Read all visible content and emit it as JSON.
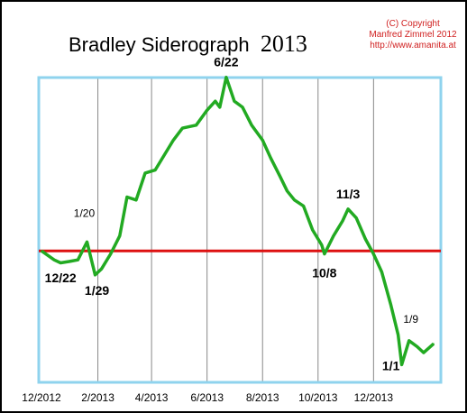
{
  "header": {
    "title": "Bradley Siderograph",
    "year": "2013",
    "copyright_lines": [
      "(C) Copyright",
      "Manfred Zimmel 2012",
      "http://www.amanita.at"
    ]
  },
  "colors": {
    "curve": "#22aa22",
    "reference_line": "#dd1111",
    "plot_border": "#8fd3ee",
    "gridline": "#888888",
    "copyright_text": "#d02020"
  },
  "chart_data": {
    "type": "line",
    "title": "Bradley Siderograph 2013",
    "xlabel": "",
    "ylabel": "",
    "x_ticks": [
      "12/2012",
      "2/2013",
      "4/2013",
      "6/2013",
      "8/2013",
      "10/2013",
      "12/2013"
    ],
    "x_range": [
      "2012-12-01",
      "2014-02-10"
    ],
    "y_axis": "unlabeled relative index",
    "ylim": [
      0,
      100
    ],
    "grid": "vertical lines at month ticks",
    "reference_line_y": 43,
    "series": [
      {
        "values": [
          [
            "2012-12-01",
            43
          ],
          [
            "2012-12-15",
            40
          ],
          [
            "2012-12-22",
            39
          ],
          [
            "2013-01-01",
            39.5
          ],
          [
            "2013-01-10",
            40
          ],
          [
            "2013-01-20",
            46
          ],
          [
            "2013-01-29",
            35
          ],
          [
            "2013-02-05",
            37
          ],
          [
            "2013-02-15",
            42
          ],
          [
            "2013-02-25",
            48
          ],
          [
            "2013-03-05",
            61
          ],
          [
            "2013-03-15",
            60
          ],
          [
            "2013-03-25",
            69
          ],
          [
            "2013-04-05",
            70
          ],
          [
            "2013-04-15",
            75
          ],
          [
            "2013-04-25",
            80
          ],
          [
            "2013-05-05",
            84
          ],
          [
            "2013-05-20",
            85
          ],
          [
            "2013-06-01",
            90
          ],
          [
            "2013-06-10",
            93
          ],
          [
            "2013-06-15",
            91
          ],
          [
            "2013-06-22",
            101
          ],
          [
            "2013-07-01",
            93
          ],
          [
            "2013-07-10",
            91
          ],
          [
            "2013-07-20",
            85
          ],
          [
            "2013-08-01",
            80
          ],
          [
            "2013-08-10",
            74
          ],
          [
            "2013-08-20",
            68
          ],
          [
            "2013-08-28",
            63
          ],
          [
            "2013-09-05",
            60
          ],
          [
            "2013-09-15",
            58
          ],
          [
            "2013-09-25",
            50
          ],
          [
            "2013-10-05",
            45
          ],
          [
            "2013-10-08",
            42
          ],
          [
            "2013-10-18",
            48
          ],
          [
            "2013-10-28",
            53
          ],
          [
            "2013-11-03",
            57
          ],
          [
            "2013-11-12",
            54
          ],
          [
            "2013-11-22",
            47
          ],
          [
            "2013-12-01",
            42
          ],
          [
            "2013-12-10",
            36
          ],
          [
            "2013-12-20",
            25
          ],
          [
            "2013-12-28",
            15
          ],
          [
            "2014-01-01",
            5
          ],
          [
            "2014-01-09",
            13
          ],
          [
            "2014-01-18",
            11
          ],
          [
            "2014-01-25",
            9
          ],
          [
            "2014-02-05",
            12
          ]
        ]
      }
    ],
    "annotations": [
      {
        "label": "12/22",
        "x": "2012-12-22",
        "style": "bold"
      },
      {
        "label": "1/20",
        "x": "2013-01-20",
        "style": "normal"
      },
      {
        "label": "1/29",
        "x": "2013-01-29",
        "style": "bold"
      },
      {
        "label": "6/22",
        "x": "2013-06-22",
        "style": "bold"
      },
      {
        "label": "11/3",
        "x": "2013-11-03",
        "style": "bold"
      },
      {
        "label": "10/8",
        "x": "2013-10-08",
        "style": "bold"
      },
      {
        "label": "1/9",
        "x": "2014-01-09",
        "style": "normal"
      },
      {
        "label": "1/1",
        "x": "2014-01-01",
        "style": "bold"
      }
    ]
  }
}
